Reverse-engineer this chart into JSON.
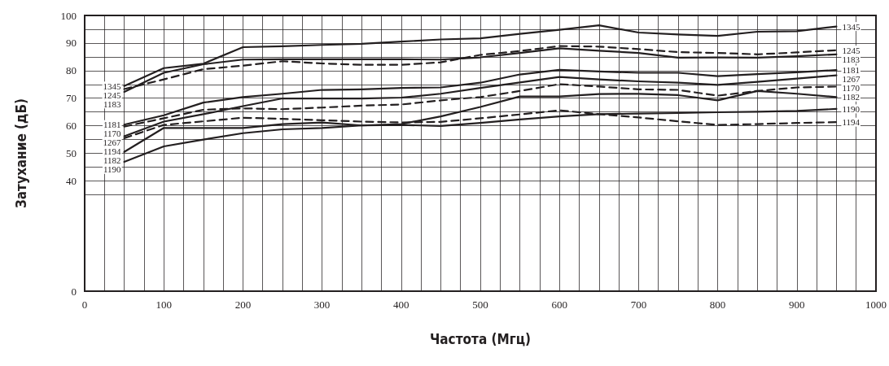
{
  "chart_data": {
    "type": "line",
    "xlabel": "Частота (Мгц)",
    "ylabel": "Затухание (дБ)",
    "x": [
      50,
      100,
      150,
      200,
      250,
      300,
      350,
      400,
      450,
      500,
      550,
      600,
      650,
      700,
      750,
      800,
      850,
      900,
      950
    ],
    "series": [
      {
        "name": "1345",
        "color": "#231f20",
        "line_style": "solid",
        "values": [
          74.4,
          80.9,
          82.5,
          88.5,
          88.8,
          89.3,
          89.7,
          90.5,
          91.3,
          91.7,
          93.3,
          94.8,
          96.4,
          93.8,
          93.1,
          92.6,
          94.1,
          94.3,
          96.0
        ]
      },
      {
        "name": "1245",
        "color": "#231f20",
        "line_style": "dashed",
        "values": [
          73.3,
          76.8,
          80.5,
          81.8,
          83.4,
          82.6,
          82.1,
          82.1,
          83.0,
          85.7,
          87.1,
          88.9,
          88.7,
          87.8,
          86.7,
          86.4,
          85.9,
          86.6,
          87.4
        ]
      },
      {
        "name": "1183",
        "color": "#231f20",
        "line_style": "solid",
        "values": [
          72.3,
          79.2,
          82.3,
          84.0,
          84.1,
          84.1,
          84.1,
          84.1,
          84.0,
          84.8,
          86.4,
          88.1,
          87.2,
          86.4,
          84.7,
          84.8,
          84.7,
          85.2,
          85.9
        ]
      },
      {
        "name": "1181",
        "color": "#231f20",
        "line_style": "solid",
        "values": [
          60.4,
          63.8,
          68.4,
          70.4,
          71.6,
          73.0,
          73.2,
          73.7,
          73.9,
          75.6,
          78.6,
          80.3,
          79.7,
          79.2,
          79.2,
          78.0,
          78.7,
          79.4,
          80.2
        ]
      },
      {
        "name": "1267",
        "color": "#231f20",
        "line_style": "solid",
        "values": [
          56.2,
          61.5,
          64.2,
          67.1,
          69.9,
          69.9,
          69.9,
          70.2,
          71.6,
          73.7,
          75.7,
          77.7,
          76.8,
          76.1,
          75.6,
          74.8,
          75.9,
          77.1,
          78.3
        ]
      },
      {
        "name": "1170",
        "color": "#231f20",
        "line_style": "dashed",
        "values": [
          59.7,
          62.7,
          65.8,
          66.3,
          66.0,
          66.6,
          67.3,
          67.7,
          69.2,
          70.4,
          72.6,
          75.1,
          74.2,
          73.2,
          73.0,
          70.9,
          72.6,
          73.9,
          74.2
        ]
      },
      {
        "name": "1182",
        "color": "#231f20",
        "line_style": "solid",
        "values": [
          50.5,
          59.2,
          59.2,
          59.2,
          60.6,
          61.2,
          60.1,
          60.6,
          63.4,
          66.8,
          70.6,
          70.6,
          71.5,
          71.6,
          71.1,
          69.2,
          72.6,
          71.6,
          70.4
        ]
      },
      {
        "name": "1190",
        "color": "#231f20",
        "line_style": "solid",
        "values": [
          46.9,
          52.5,
          55.0,
          57.3,
          58.7,
          59.2,
          60.1,
          60.3,
          59.9,
          61.0,
          62.3,
          63.4,
          64.2,
          64.4,
          64.6,
          64.9,
          65.1,
          65.4,
          66.1
        ]
      },
      {
        "name": "1194",
        "color": "#231f20",
        "line_style": "dashed",
        "values": [
          55.5,
          60.3,
          61.6,
          62.9,
          62.5,
          62.0,
          61.5,
          61.2,
          61.4,
          62.7,
          64.1,
          65.6,
          64.2,
          63.0,
          61.6,
          60.3,
          60.6,
          61.0,
          61.3
        ]
      }
    ],
    "xlim": [
      0,
      1000
    ],
    "xticks": [
      0,
      {
        "value": 25,
        "label": null
      },
      {
        "value": 50,
        "label": null
      },
      {
        "value": 75,
        "label": null
      },
      100,
      {
        "value": 125,
        "label": null
      },
      {
        "value": 150,
        "label": null
      },
      {
        "value": 175,
        "label": null
      },
      200,
      {
        "value": 225,
        "label": null
      },
      {
        "value": 250,
        "label": null
      },
      {
        "value": 275,
        "label": null
      },
      300,
      {
        "value": 325,
        "label": null
      },
      {
        "value": 350,
        "label": null
      },
      {
        "value": 375,
        "label": null
      },
      400,
      {
        "value": 425,
        "label": null
      },
      {
        "value": 450,
        "label": null
      },
      {
        "value": 475,
        "label": null
      },
      500,
      {
        "value": 525,
        "label": null
      },
      {
        "value": 550,
        "label": null
      },
      {
        "value": 575,
        "label": null
      },
      600,
      {
        "value": 625,
        "label": null
      },
      {
        "value": 650,
        "label": null
      },
      {
        "value": 675,
        "label": null
      },
      700,
      {
        "value": 725,
        "label": null
      },
      {
        "value": 750,
        "label": null
      },
      {
        "value": 775,
        "label": null
      },
      800,
      {
        "value": 825,
        "label": null
      },
      {
        "value": 850,
        "label": null
      },
      {
        "value": 875,
        "label": null
      },
      900,
      {
        "value": 925,
        "label": null
      },
      {
        "value": 950,
        "label": null
      },
      {
        "value": 975,
        "label": null
      },
      1000
    ],
    "ylim": [
      0,
      100
    ],
    "yticks": [
      0,
      {
        "value": 35,
        "label": null
      },
      40,
      {
        "value": 45,
        "label": null
      },
      50,
      {
        "value": 55,
        "label": null
      },
      60,
      {
        "value": 65,
        "label": null
      },
      70,
      {
        "value": 75,
        "label": null
      },
      80,
      {
        "value": 85,
        "label": null
      },
      90,
      {
        "value": 95,
        "label": null
      },
      100
    ],
    "grid": true,
    "legend": false,
    "marker": "none"
  }
}
